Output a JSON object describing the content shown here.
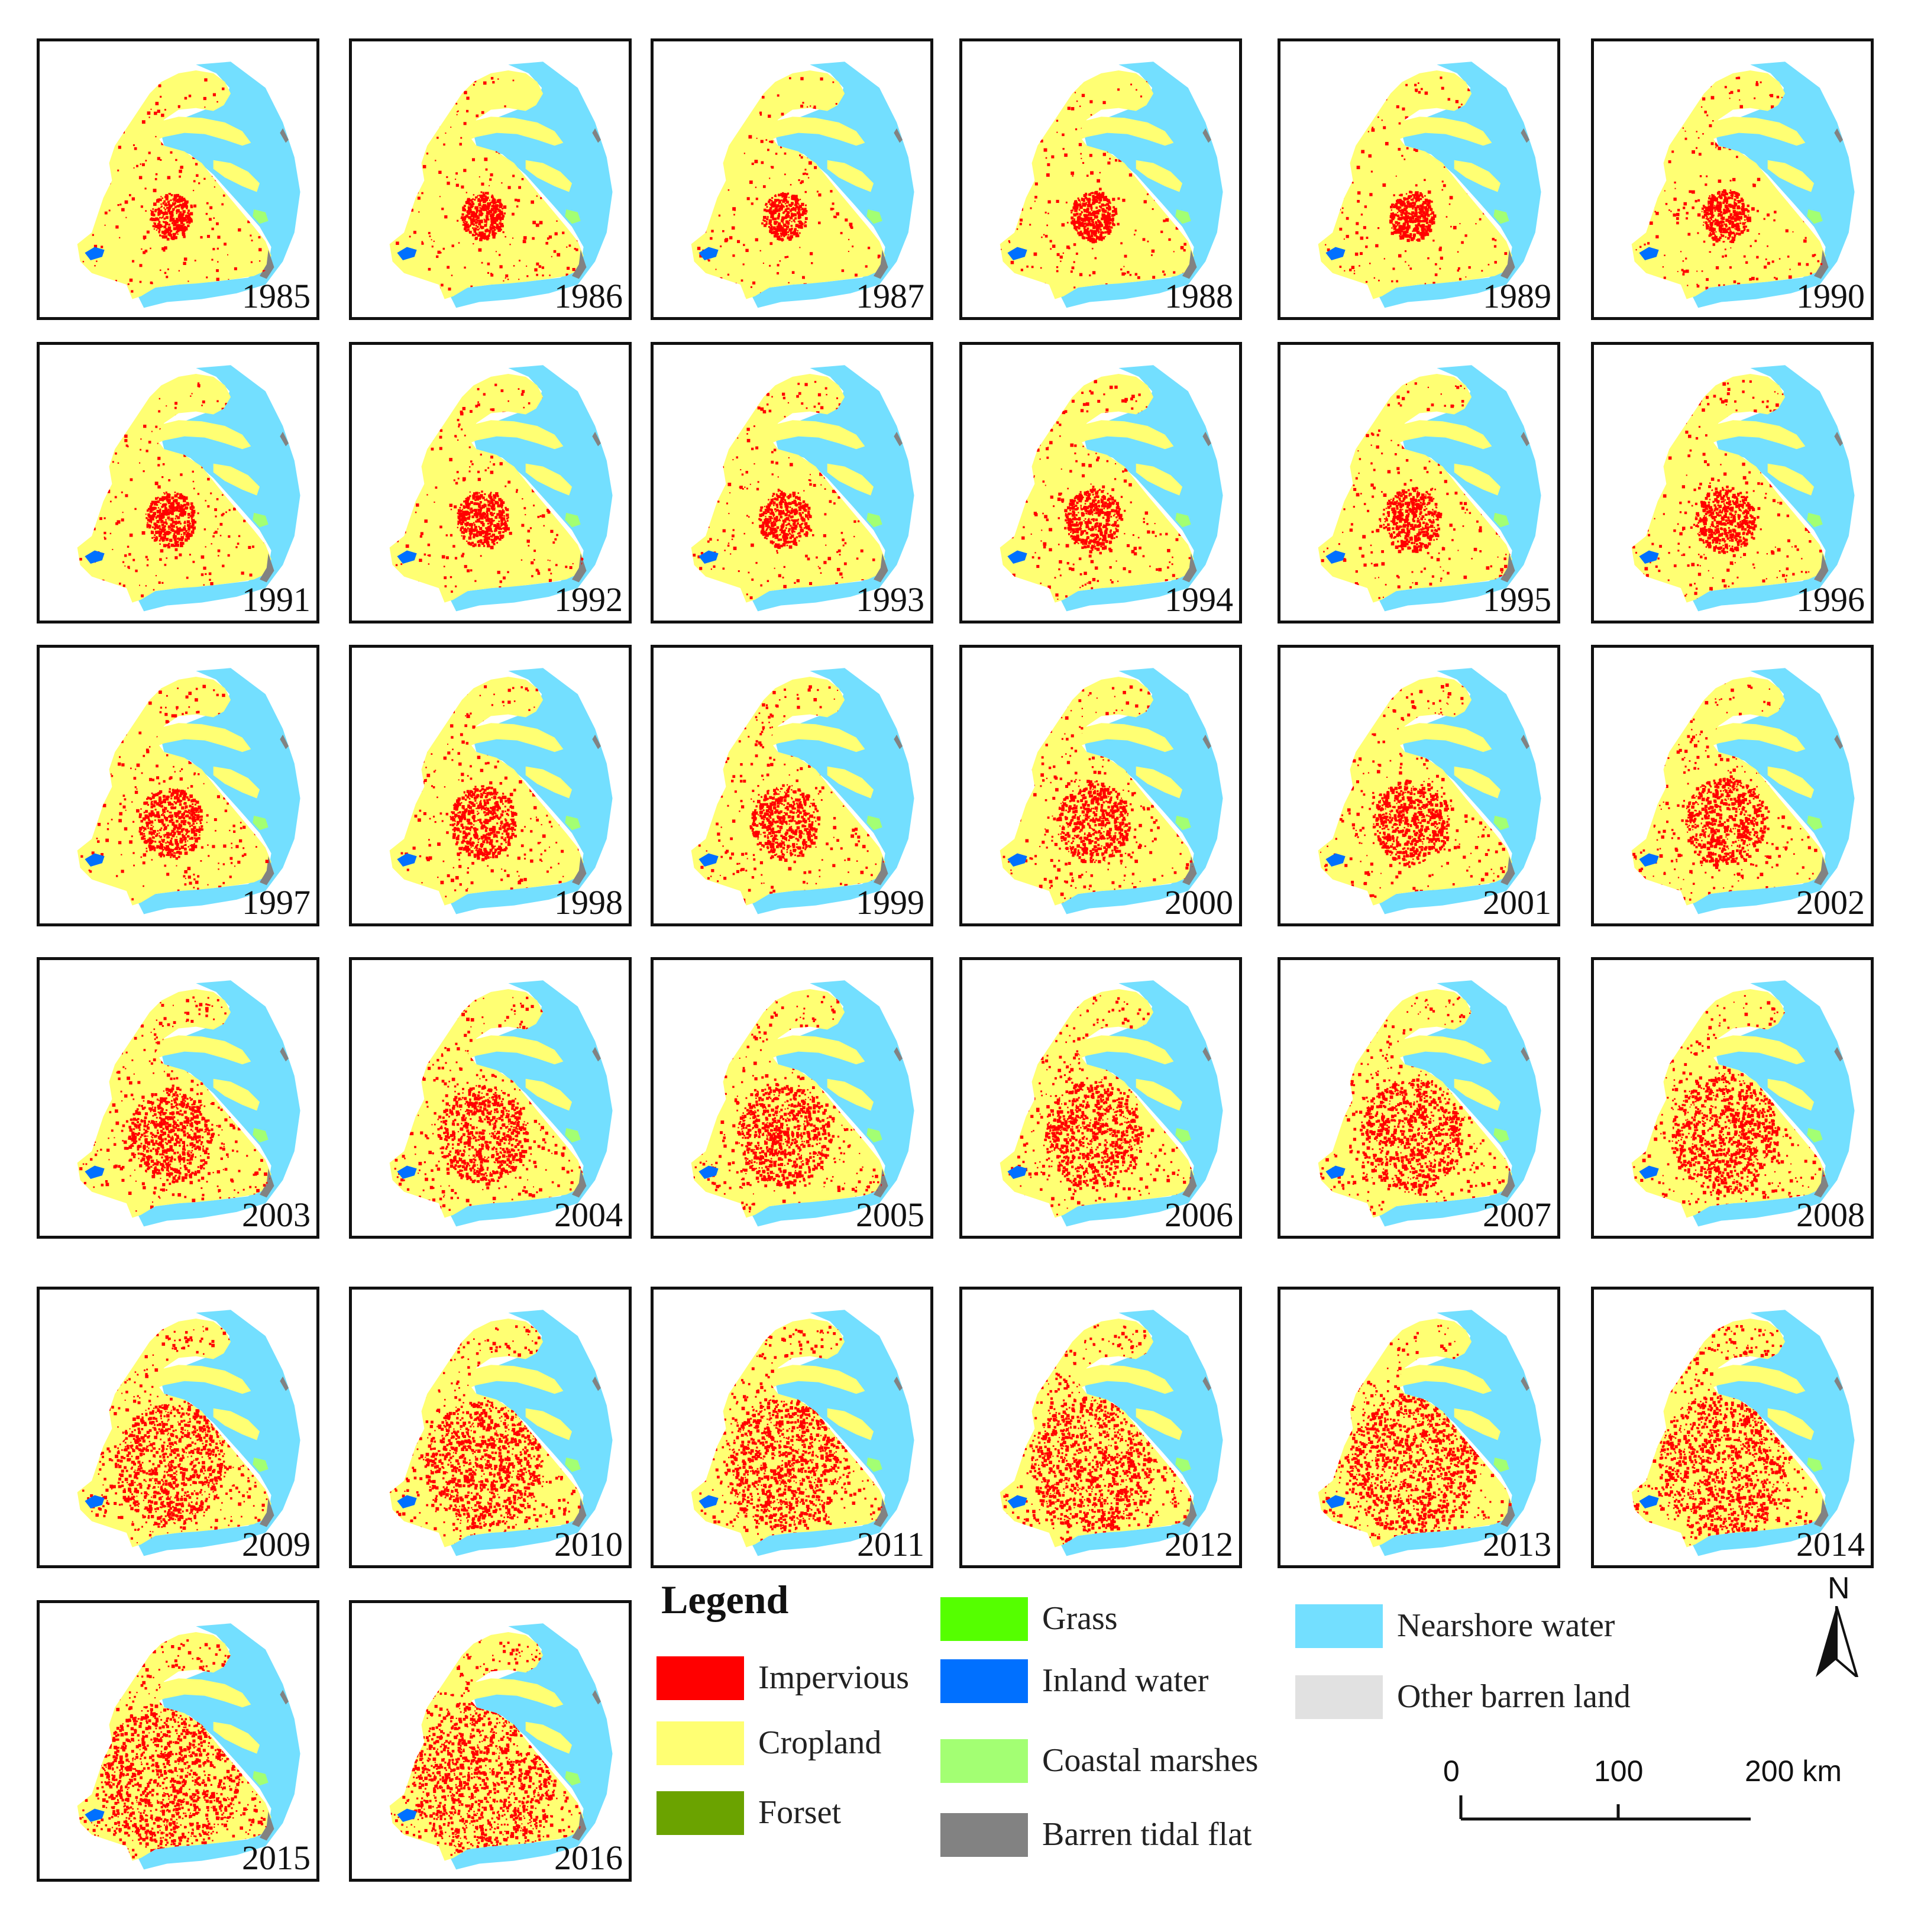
{
  "figure": {
    "panels": [
      {
        "year": "1985",
        "urban_level": 0.1
      },
      {
        "year": "1986",
        "urban_level": 0.11
      },
      {
        "year": "1987",
        "urban_level": 0.11
      },
      {
        "year": "1988",
        "urban_level": 0.12
      },
      {
        "year": "1989",
        "urban_level": 0.12
      },
      {
        "year": "1990",
        "urban_level": 0.13
      },
      {
        "year": "1991",
        "urban_level": 0.14
      },
      {
        "year": "1992",
        "urban_level": 0.15
      },
      {
        "year": "1993",
        "urban_level": 0.15
      },
      {
        "year": "1994",
        "urban_level": 0.17
      },
      {
        "year": "1995",
        "urban_level": 0.18
      },
      {
        "year": "1996",
        "urban_level": 0.19
      },
      {
        "year": "1997",
        "urban_level": 0.21
      },
      {
        "year": "1998",
        "urban_level": 0.22
      },
      {
        "year": "1999",
        "urban_level": 0.23
      },
      {
        "year": "2000",
        "urban_level": 0.25
      },
      {
        "year": "2001",
        "urban_level": 0.27
      },
      {
        "year": "2002",
        "urban_level": 0.29
      },
      {
        "year": "2003",
        "urban_level": 0.31
      },
      {
        "year": "2004",
        "urban_level": 0.33
      },
      {
        "year": "2005",
        "urban_level": 0.35
      },
      {
        "year": "2006",
        "urban_level": 0.37
      },
      {
        "year": "2007",
        "urban_level": 0.39
      },
      {
        "year": "2008",
        "urban_level": 0.41
      },
      {
        "year": "2009",
        "urban_level": 0.44
      },
      {
        "year": "2010",
        "urban_level": 0.46
      },
      {
        "year": "2011",
        "urban_level": 0.48
      },
      {
        "year": "2012",
        "urban_level": 0.5
      },
      {
        "year": "2013",
        "urban_level": 0.52
      },
      {
        "year": "2014",
        "urban_level": 0.54
      },
      {
        "year": "2015",
        "urban_level": 0.57
      },
      {
        "year": "2016",
        "urban_level": 0.59
      }
    ]
  },
  "legend": {
    "title": "Legend",
    "items": [
      {
        "label": "Impervious",
        "color": "#ff0000"
      },
      {
        "label": "Cropland",
        "color": "#ffff73"
      },
      {
        "label": "Forset",
        "color": "#6ba300"
      },
      {
        "label": "Grass",
        "color": "#55ff00"
      },
      {
        "label": "Inland water",
        "color": "#0070ff"
      },
      {
        "label": "Coastal marshes",
        "color": "#a3ff73"
      },
      {
        "label": "Barren tidal flat",
        "color": "#828282"
      },
      {
        "label": "Nearshore water",
        "color": "#73dfff"
      },
      {
        "label": "Other barren land",
        "color": "#e1e1e1"
      }
    ]
  },
  "north_arrow": {
    "label": "N"
  },
  "scale_bar": {
    "ticks": [
      "0",
      "100",
      "200 km"
    ]
  },
  "colors": {
    "impervious": "#ff0000",
    "cropland": "#ffff73",
    "nearshore_water": "#73dfff",
    "inland_water": "#0070ff",
    "tidal_flat": "#828282",
    "marsh": "#a3ff73",
    "border": "#111111"
  }
}
